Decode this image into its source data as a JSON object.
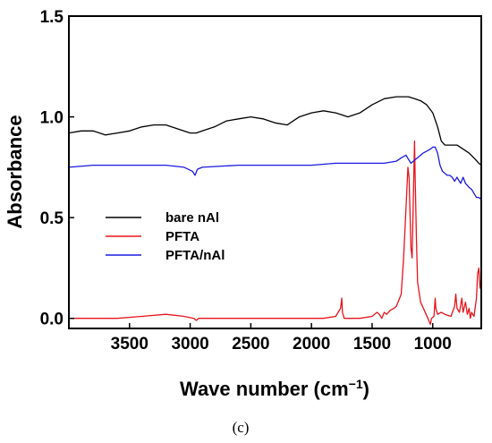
{
  "chart_data": {
    "type": "line",
    "xlabel": "Wave number (cm",
    "xlabel_sup": "−1",
    "xlabel_end": ")",
    "ylabel": "Absorbance",
    "xlim": [
      4000,
      600
    ],
    "ylim": [
      -0.05,
      1.5
    ],
    "x_ticks": [
      3500,
      3000,
      2500,
      2000,
      1500,
      1000
    ],
    "x_tick_labels": [
      "3500",
      "3000",
      "2500",
      "2000",
      "1500",
      "1000"
    ],
    "y_ticks": [
      0.0,
      0.5,
      1.0,
      1.5
    ],
    "y_tick_labels": [
      "0.0",
      "0.5",
      "1.0",
      "1.5"
    ],
    "grid": false,
    "legend_position": "center-left",
    "panel_label": "(c)",
    "series": [
      {
        "name": "bare nAl",
        "color": "#000000",
        "points": [
          [
            4000,
            0.92
          ],
          [
            3900,
            0.93
          ],
          [
            3800,
            0.93
          ],
          [
            3700,
            0.91
          ],
          [
            3600,
            0.92
          ],
          [
            3500,
            0.93
          ],
          [
            3400,
            0.95
          ],
          [
            3300,
            0.96
          ],
          [
            3200,
            0.96
          ],
          [
            3100,
            0.94
          ],
          [
            3000,
            0.92
          ],
          [
            2950,
            0.92
          ],
          [
            2900,
            0.93
          ],
          [
            2800,
            0.95
          ],
          [
            2700,
            0.98
          ],
          [
            2600,
            0.99
          ],
          [
            2500,
            1.0
          ],
          [
            2400,
            0.99
          ],
          [
            2300,
            0.97
          ],
          [
            2200,
            0.96
          ],
          [
            2100,
            1.0
          ],
          [
            2000,
            1.02
          ],
          [
            1900,
            1.03
          ],
          [
            1800,
            1.02
          ],
          [
            1700,
            1.0
          ],
          [
            1600,
            1.02
          ],
          [
            1500,
            1.06
          ],
          [
            1400,
            1.09
          ],
          [
            1300,
            1.1
          ],
          [
            1250,
            1.1
          ],
          [
            1200,
            1.1
          ],
          [
            1150,
            1.09
          ],
          [
            1100,
            1.08
          ],
          [
            1050,
            1.06
          ],
          [
            1000,
            1.02
          ],
          [
            960,
            0.95
          ],
          [
            930,
            0.88
          ],
          [
            900,
            0.86
          ],
          [
            850,
            0.86
          ],
          [
            800,
            0.86
          ],
          [
            750,
            0.84
          ],
          [
            700,
            0.82
          ],
          [
            650,
            0.79
          ],
          [
            620,
            0.77
          ],
          [
            600,
            0.76
          ]
        ]
      },
      {
        "name": "PFTA",
        "color": "#e8141c",
        "points": [
          [
            4000,
            0.0
          ],
          [
            3800,
            0.0
          ],
          [
            3600,
            0.0
          ],
          [
            3400,
            0.01
          ],
          [
            3200,
            0.02
          ],
          [
            3050,
            0.01
          ],
          [
            2970,
            0.0
          ],
          [
            2950,
            -0.01
          ],
          [
            2930,
            0.0
          ],
          [
            2800,
            0.0
          ],
          [
            2500,
            0.0
          ],
          [
            2200,
            0.0
          ],
          [
            1900,
            0.0
          ],
          [
            1800,
            0.01
          ],
          [
            1760,
            0.05
          ],
          [
            1750,
            0.1
          ],
          [
            1745,
            0.03
          ],
          [
            1730,
            0.0
          ],
          [
            1600,
            0.0
          ],
          [
            1500,
            0.01
          ],
          [
            1460,
            0.03
          ],
          [
            1440,
            0.02
          ],
          [
            1420,
            0.0
          ],
          [
            1400,
            0.03
          ],
          [
            1380,
            0.02
          ],
          [
            1350,
            0.04
          ],
          [
            1320,
            0.05
          ],
          [
            1300,
            0.06
          ],
          [
            1260,
            0.12
          ],
          [
            1240,
            0.3
          ],
          [
            1220,
            0.55
          ],
          [
            1205,
            0.75
          ],
          [
            1195,
            0.7
          ],
          [
            1180,
            0.35
          ],
          [
            1170,
            0.3
          ],
          [
            1160,
            0.6
          ],
          [
            1150,
            0.88
          ],
          [
            1145,
            0.7
          ],
          [
            1135,
            0.4
          ],
          [
            1125,
            0.18
          ],
          [
            1100,
            0.08
          ],
          [
            1070,
            0.04
          ],
          [
            1040,
            0.0
          ],
          [
            1020,
            -0.03
          ],
          [
            1010,
            0.0
          ],
          [
            990,
            0.01
          ],
          [
            980,
            0.1
          ],
          [
            975,
            0.05
          ],
          [
            960,
            0.02
          ],
          [
            930,
            0.03
          ],
          [
            900,
            0.02
          ],
          [
            850,
            0.01
          ],
          [
            820,
            0.06
          ],
          [
            810,
            0.12
          ],
          [
            800,
            0.05
          ],
          [
            780,
            0.03
          ],
          [
            760,
            0.1
          ],
          [
            750,
            0.03
          ],
          [
            730,
            0.08
          ],
          [
            715,
            0.02
          ],
          [
            700,
            0.05
          ],
          [
            690,
            0.0
          ],
          [
            680,
            0.03
          ],
          [
            660,
            0.01
          ],
          [
            640,
            0.1
          ],
          [
            630,
            0.22
          ],
          [
            620,
            0.25
          ],
          [
            610,
            0.15
          ],
          [
            600,
            0.2
          ]
        ]
      },
      {
        "name": "PFTA/nAl",
        "color": "#1a1ae0",
        "points": [
          [
            4000,
            0.75
          ],
          [
            3800,
            0.76
          ],
          [
            3600,
            0.76
          ],
          [
            3400,
            0.76
          ],
          [
            3200,
            0.76
          ],
          [
            3050,
            0.75
          ],
          [
            2980,
            0.73
          ],
          [
            2960,
            0.71
          ],
          [
            2940,
            0.74
          ],
          [
            2900,
            0.75
          ],
          [
            2600,
            0.76
          ],
          [
            2300,
            0.76
          ],
          [
            2000,
            0.76
          ],
          [
            1800,
            0.77
          ],
          [
            1600,
            0.77
          ],
          [
            1400,
            0.77
          ],
          [
            1300,
            0.78
          ],
          [
            1250,
            0.8
          ],
          [
            1220,
            0.81
          ],
          [
            1200,
            0.79
          ],
          [
            1180,
            0.77
          ],
          [
            1160,
            0.78
          ],
          [
            1140,
            0.79
          ],
          [
            1120,
            0.8
          ],
          [
            1100,
            0.81
          ],
          [
            1080,
            0.82
          ],
          [
            1050,
            0.83
          ],
          [
            1020,
            0.84
          ],
          [
            1000,
            0.85
          ],
          [
            980,
            0.85
          ],
          [
            960,
            0.82
          ],
          [
            940,
            0.76
          ],
          [
            920,
            0.73
          ],
          [
            900,
            0.72
          ],
          [
            880,
            0.71
          ],
          [
            860,
            0.71
          ],
          [
            840,
            0.7
          ],
          [
            820,
            0.68
          ],
          [
            800,
            0.7
          ],
          [
            790,
            0.69
          ],
          [
            770,
            0.67
          ],
          [
            750,
            0.7
          ],
          [
            730,
            0.67
          ],
          [
            700,
            0.65
          ],
          [
            680,
            0.64
          ],
          [
            660,
            0.62
          ],
          [
            640,
            0.6
          ],
          [
            620,
            0.6
          ],
          [
            600,
            0.59
          ]
        ]
      }
    ]
  }
}
